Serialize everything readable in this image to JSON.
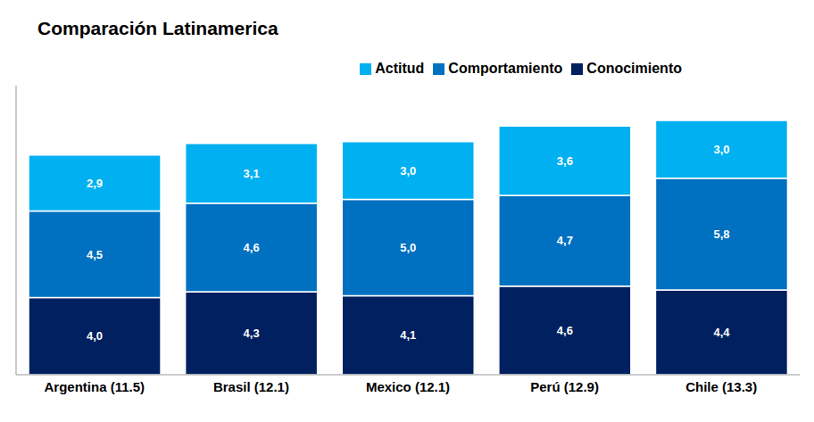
{
  "chart_data": {
    "type": "bar",
    "title": "Comparación Latinamerica",
    "categories": [
      "Argentina (11.5)",
      "Brasil (12.1)",
      "Mexico (12.1)",
      "Perú (12.9)",
      "Chile (13.3)"
    ],
    "series": [
      {
        "name": "Conocimiento",
        "color": "#002060",
        "values": [
          4.0,
          4.3,
          4.1,
          4.6,
          4.4
        ],
        "value_labels": [
          "4,0",
          "4,3",
          "4,1",
          "4,6",
          "4,4"
        ]
      },
      {
        "name": "Comportamiento",
        "color": "#0070C0",
        "values": [
          4.5,
          4.6,
          5.0,
          4.7,
          5.8
        ],
        "value_labels": [
          "4,5",
          "4,6",
          "5,0",
          "4,7",
          "5,8"
        ]
      },
      {
        "name": "Actitud",
        "color": "#00B0F0",
        "values": [
          2.9,
          3.1,
          3.0,
          3.6,
          3.0
        ],
        "value_labels": [
          "2,9",
          "3,1",
          "3,0",
          "3,6",
          "3,0"
        ]
      }
    ],
    "ylim": [
      0,
      15
    ],
    "stacked": true,
    "data_labels": true,
    "legend": "top",
    "tick_labels": "x",
    "grid": false
  }
}
